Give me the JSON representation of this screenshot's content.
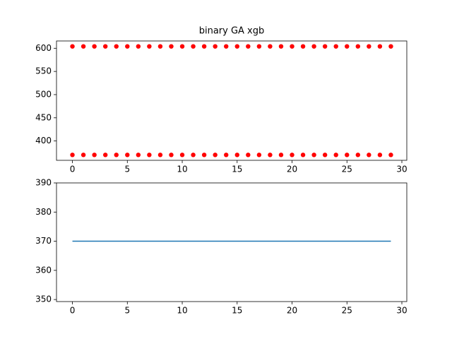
{
  "chart_data": [
    {
      "type": "scatter",
      "title": "binary GA xgb",
      "color": "#ff0000",
      "x": [
        0,
        1,
        2,
        3,
        4,
        5,
        6,
        7,
        8,
        9,
        10,
        11,
        12,
        13,
        14,
        15,
        16,
        17,
        18,
        19,
        20,
        21,
        22,
        23,
        24,
        25,
        26,
        27,
        28,
        29,
        0,
        1,
        2,
        3,
        4,
        5,
        6,
        7,
        8,
        9,
        10,
        11,
        12,
        13,
        14,
        15,
        16,
        17,
        18,
        19,
        20,
        21,
        22,
        23,
        24,
        25,
        26,
        27,
        28,
        29
      ],
      "y": [
        604,
        604,
        604,
        604,
        604,
        604,
        604,
        604,
        604,
        604,
        604,
        604,
        604,
        604,
        604,
        604,
        604,
        604,
        604,
        604,
        604,
        604,
        604,
        604,
        604,
        604,
        604,
        604,
        604,
        604,
        370,
        370,
        370,
        370,
        370,
        370,
        370,
        370,
        370,
        370,
        370,
        370,
        370,
        370,
        370,
        370,
        370,
        370,
        370,
        370,
        370,
        370,
        370,
        370,
        370,
        370,
        370,
        370,
        370,
        370
      ],
      "xlim": [
        -1.45,
        30.45
      ],
      "xticks": [
        0,
        5,
        10,
        15,
        20,
        25,
        30
      ],
      "ylim": [
        358.3,
        615.7
      ],
      "yticks": [
        400,
        450,
        500,
        550,
        600
      ]
    },
    {
      "type": "line",
      "color": "#1f77b4",
      "x": [
        0,
        1,
        2,
        3,
        4,
        5,
        6,
        7,
        8,
        9,
        10,
        11,
        12,
        13,
        14,
        15,
        16,
        17,
        18,
        19,
        20,
        21,
        22,
        23,
        24,
        25,
        26,
        27,
        28,
        29
      ],
      "values": [
        370,
        370,
        370,
        370,
        370,
        370,
        370,
        370,
        370,
        370,
        370,
        370,
        370,
        370,
        370,
        370,
        370,
        370,
        370,
        370,
        370,
        370,
        370,
        370,
        370,
        370,
        370,
        370,
        370,
        370
      ],
      "xlim": [
        -1.45,
        30.45
      ],
      "xticks": [
        0,
        5,
        10,
        15,
        20,
        25,
        30
      ],
      "ylim": [
        349.3,
        390
      ],
      "yticks": [
        350,
        360,
        370,
        380,
        390
      ]
    }
  ]
}
